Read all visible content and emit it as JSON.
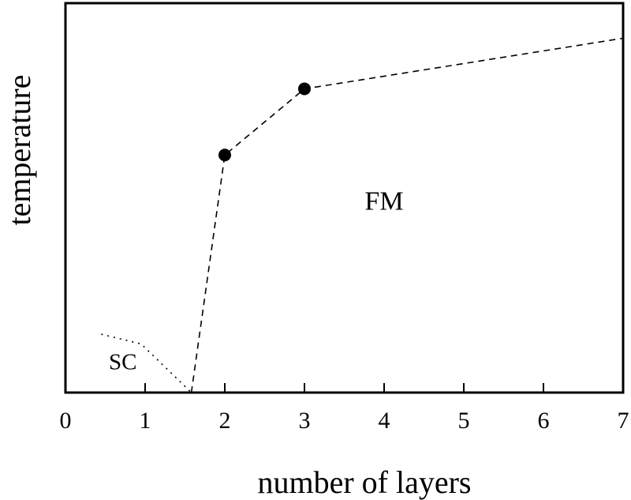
{
  "chart_data": {
    "type": "line",
    "title": "",
    "xlabel": "number of layers",
    "ylabel": "temperature",
    "xlim": [
      0,
      7
    ],
    "ylim": [
      0,
      1
    ],
    "xticks": [
      "0",
      "1",
      "2",
      "3",
      "4",
      "5",
      "6",
      "7"
    ],
    "yticks": [],
    "grid": false,
    "legend": "none",
    "series": [
      {
        "style": "dashed",
        "x": [
          1.58,
          2.0,
          3.0,
          7.0
        ],
        "y": [
          0.0,
          0.61,
          0.78,
          0.91
        ],
        "markers_x": [
          2.0,
          3.0
        ],
        "markers_y": [
          0.61,
          0.78
        ]
      },
      {
        "style": "dotted",
        "x": [
          0.45,
          0.95,
          1.58
        ],
        "y": [
          0.15,
          0.125,
          0.0
        ]
      }
    ],
    "annotations": [
      {
        "text": "FM",
        "x": 4.0,
        "y": 0.47
      },
      {
        "text": "SC",
        "x": 0.72,
        "y": 0.06
      }
    ],
    "colors": {
      "line": "#000000",
      "marker": "#000000",
      "background": "#ffffff"
    }
  }
}
